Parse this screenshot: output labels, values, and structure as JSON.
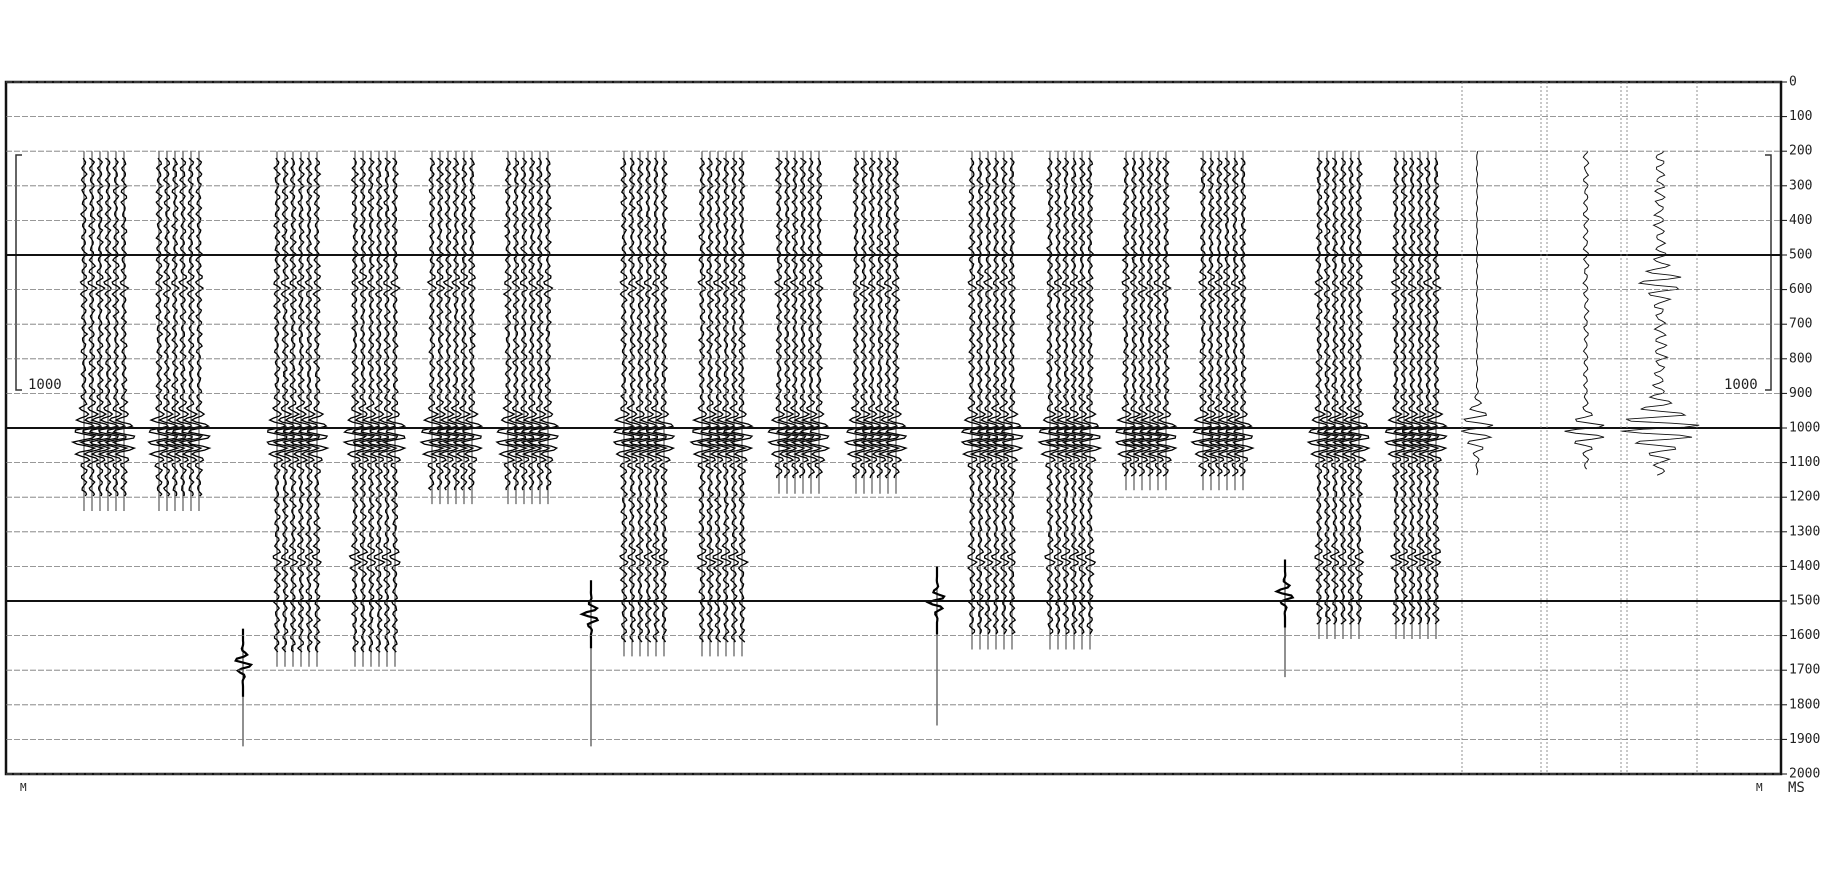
{
  "axis": {
    "label": "MS",
    "range": [
      0,
      2000
    ],
    "ticks": [
      0,
      100,
      200,
      300,
      400,
      500,
      600,
      700,
      800,
      900,
      1000,
      1100,
      1200,
      1300,
      1400,
      1500,
      1600,
      1700,
      1800,
      1900,
      2000
    ]
  },
  "scale_labels": {
    "left": "1000",
    "right": "1000"
  },
  "bottom_labels": [
    "M",
    "M"
  ]
}
